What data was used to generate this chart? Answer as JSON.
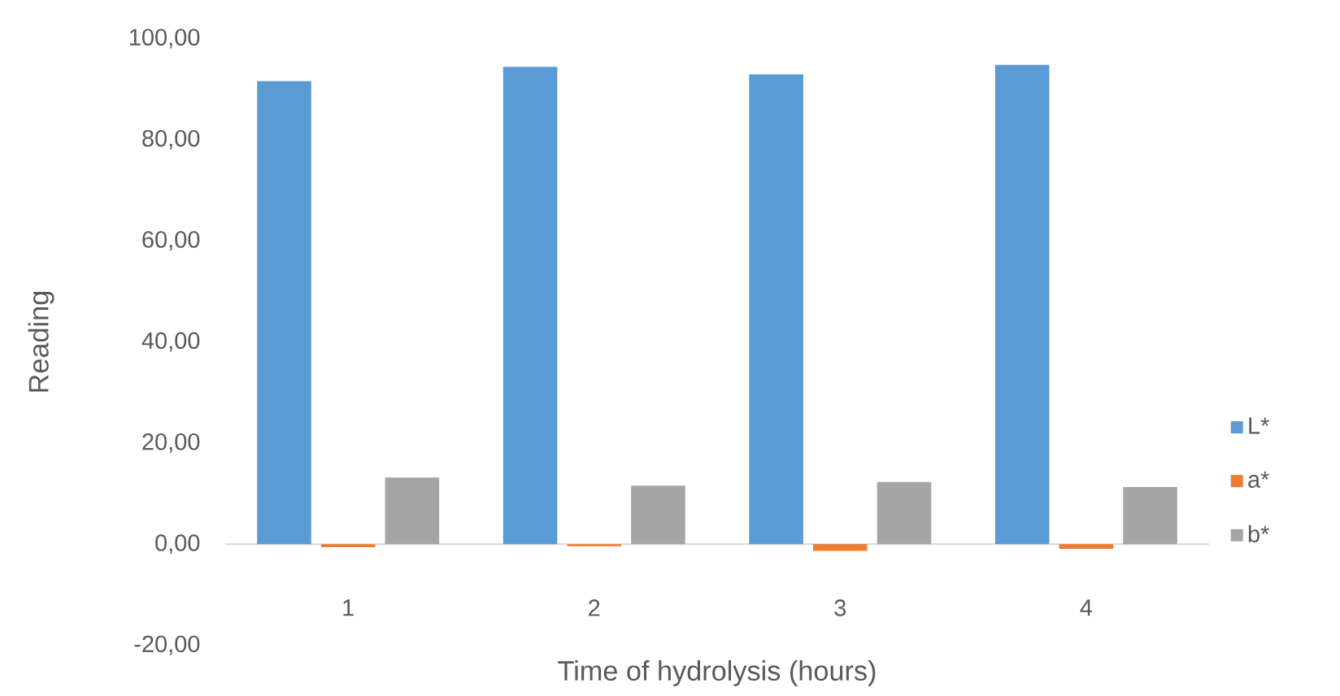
{
  "chart_data": {
    "type": "bar",
    "xlabel": "Time of hydrolysis (hours)",
    "ylabel": "Reading",
    "categories": [
      "1",
      "2",
      "3",
      "4"
    ],
    "series": [
      {
        "name": "L*",
        "color": "#5b9bd5",
        "values": [
          91.6,
          94.4,
          92.9,
          94.8
        ]
      },
      {
        "name": "a*",
        "color": "#ed7d31",
        "values": [
          -0.6,
          -0.4,
          -1.3,
          -0.9
        ]
      },
      {
        "name": "b*",
        "color": "#a5a5a5",
        "values": [
          13.2,
          11.6,
          12.3,
          11.3
        ]
      }
    ],
    "ylim": [
      -20,
      100
    ],
    "yticks": [
      {
        "value": -20,
        "label": "-20,00"
      },
      {
        "value": 0,
        "label": "0,00"
      },
      {
        "value": 20,
        "label": "20,00"
      },
      {
        "value": 40,
        "label": "40,00"
      },
      {
        "value": 60,
        "label": "60,00"
      },
      {
        "value": 80,
        "label": "80,00"
      },
      {
        "value": 100,
        "label": "100,00"
      }
    ],
    "legend": "right"
  }
}
